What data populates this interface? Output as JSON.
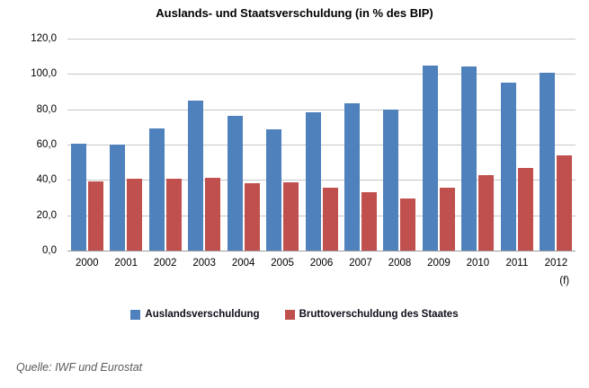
{
  "chart_data": {
    "type": "bar",
    "title": "Auslands- und Staatsverschuldung (in % des BIP)",
    "xlabel": "",
    "ylabel": "",
    "ylim": [
      0,
      120
    ],
    "grid": true,
    "legend_position": "bottom",
    "yticks": [
      {
        "value": 120,
        "label": "120,0"
      },
      {
        "value": 100,
        "label": "100,0"
      },
      {
        "value": 80,
        "label": "80,0"
      },
      {
        "value": 60,
        "label": "60,0"
      },
      {
        "value": 40,
        "label": "40,0"
      },
      {
        "value": 20,
        "label": "20,0"
      },
      {
        "value": 0,
        "label": "0,0"
      }
    ],
    "categories": [
      {
        "label": "2000",
        "note": ""
      },
      {
        "label": "2001",
        "note": ""
      },
      {
        "label": "2002",
        "note": ""
      },
      {
        "label": "2003",
        "note": ""
      },
      {
        "label": "2004",
        "note": ""
      },
      {
        "label": "2005",
        "note": ""
      },
      {
        "label": "2006",
        "note": ""
      },
      {
        "label": "2007",
        "note": ""
      },
      {
        "label": "2008",
        "note": ""
      },
      {
        "label": "2009",
        "note": ""
      },
      {
        "label": "2010",
        "note": ""
      },
      {
        "label": "2011",
        "note": ""
      },
      {
        "label": "2012",
        "note": "(f)"
      }
    ],
    "series": [
      {
        "name": "Auslandsverschuldung",
        "color": "#4F81BD",
        "values": [
          60.5,
          60.0,
          69.0,
          85.0,
          76.5,
          68.5,
          78.5,
          83.5,
          80.0,
          104.5,
          104.0,
          95.0,
          100.5
        ]
      },
      {
        "name": "Bruttoverschuldung des Staates",
        "color": "#C0504D",
        "values": [
          39.0,
          40.5,
          40.5,
          41.0,
          38.0,
          38.5,
          35.5,
          33.0,
          29.5,
          35.5,
          42.5,
          47.0,
          54.0
        ]
      }
    ],
    "layout_colors": {
      "gridline": "#C6C6C6",
      "axis_line": "#9C9C9C",
      "source_text": "#595959"
    }
  },
  "source_note": "Quelle: IWF und Eurostat"
}
